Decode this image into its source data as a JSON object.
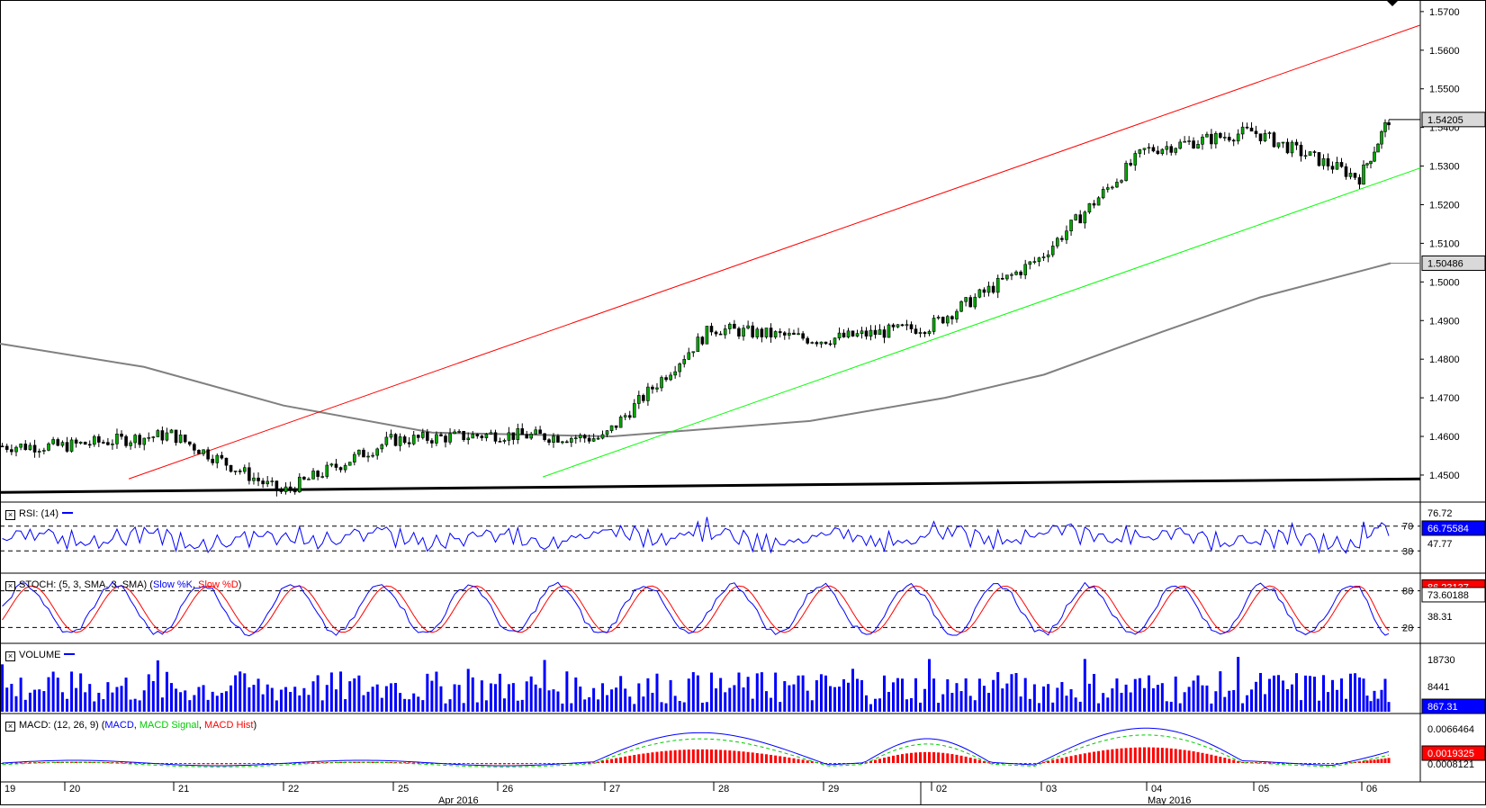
{
  "window": {
    "title": ""
  },
  "price_panel": {
    "y_ticks": [
      "1.5700",
      "1.5600",
      "1.5500",
      "1.5400",
      "1.5300",
      "1.5200",
      "1.5100",
      "1.5000",
      "1.4900",
      "1.4800",
      "1.4700",
      "1.4600",
      "1.4500"
    ],
    "y_tick_values": [
      1.57,
      1.56,
      1.55,
      1.54,
      1.53,
      1.52,
      1.51,
      1.5,
      1.49,
      1.48,
      1.47,
      1.46,
      1.45
    ],
    "last_price_label": "1.54205",
    "last_price": 1.54205,
    "ma_label": "1.50486",
    "ma_value": 1.50486
  },
  "rsi_panel": {
    "title": "RSI: (14)",
    "levels": [
      "70",
      "30"
    ],
    "right_labels": [
      "76.72",
      "47.77"
    ],
    "current_label": "66.75584",
    "color": "#0000ff"
  },
  "stoch_panel": {
    "title": "STOCH: (5, 3, SMA, 3, SMA)",
    "legend_k": "Slow %K",
    "legend_d": "Slow %D",
    "levels": [
      "80",
      "20"
    ],
    "right_labels": [
      "38.31"
    ],
    "k_label": "86.23137",
    "d_label": "73.60188",
    "k_color": "#0000ff",
    "d_color": "#ff0000"
  },
  "volume_panel": {
    "title": "VOLUME",
    "right_labels": [
      "18730",
      "8441"
    ],
    "current_label": "867.31",
    "color": "#0000ff"
  },
  "macd_panel": {
    "title": "MACD: (12, 26, 9)",
    "legend_macd": "MACD",
    "legend_signal": "MACD Signal",
    "legend_hist": "MACD Hist",
    "right_labels": [
      "0.0066464"
    ],
    "current_label": "0.0019325",
    "signal_label": "0.0008121",
    "macd_color": "#0000ff",
    "signal_color": "#00cc00",
    "hist_color": "#ff0000"
  },
  "x_axis": {
    "day_labels": [
      "19",
      "20",
      "21",
      "22",
      "25",
      "26",
      "27",
      "28",
      "29",
      "02",
      "03",
      "04",
      "05",
      "06"
    ],
    "month_labels": [
      "Apr 2016",
      "May 2016"
    ]
  },
  "chart_data": {
    "type": "candlestick",
    "instrument_scale": {
      "ylim": [
        1.443,
        1.573
      ]
    },
    "session_days": [
      "19",
      "20",
      "21",
      "22",
      "25",
      "26",
      "27",
      "28",
      "29",
      "02",
      "03",
      "04",
      "05",
      "06"
    ],
    "price_anchors": [
      {
        "day": "19",
        "close": 1.4575
      },
      {
        "day": "20",
        "close": 1.4605
      },
      {
        "day": "21",
        "close": 1.4455
      },
      {
        "day": "22",
        "close": 1.459
      },
      {
        "day": "25",
        "close": 1.4605
      },
      {
        "day": "26",
        "close": 1.4595
      },
      {
        "day": "27",
        "close": 1.488
      },
      {
        "day": "28",
        "close": 1.485
      },
      {
        "day": "29",
        "close": 1.4885
      },
      {
        "day": "02",
        "close": 1.506
      },
      {
        "day": "03",
        "close": 1.534
      },
      {
        "day": "04",
        "close": 1.539
      },
      {
        "day": "05",
        "close": 1.527
      },
      {
        "day": "06",
        "close": 1.54205
      }
    ],
    "trendlines": [
      {
        "name": "",
        "color": "#ff0000",
        "from": {
          "day": "20",
          "price": 1.449
        },
        "to": {
          "day": "06",
          "price": 1.5665
        }
      },
      {
        "name": "",
        "color": "#00ff00",
        "from": {
          "day": "26",
          "price": 1.4495
        },
        "to": {
          "day": "06",
          "price": 1.5295
        }
      },
      {
        "name": "",
        "color": "#000000",
        "from": {
          "day": "19",
          "price": 1.4455
        },
        "to": {
          "day": "06",
          "price": 1.449
        }
      }
    ],
    "moving_average": {
      "name": "",
      "color": "#808080",
      "value_last": 1.50486
    },
    "grid": false
  }
}
